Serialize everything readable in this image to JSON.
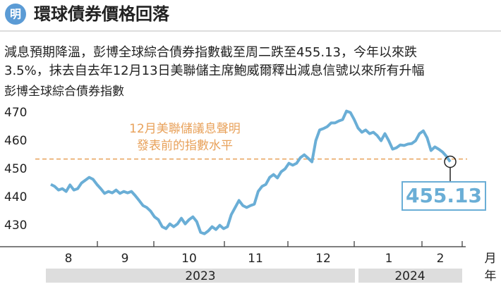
{
  "chart_data": {
    "type": "line",
    "logo": "明",
    "title": "環球債券價格回落",
    "subtitle": [
      "減息預期降溫，彭博全球綜合債券指數截至周二跌至455.13，今年以來跌",
      "3.5%，抹去自去年12月13日美聯儲主席鮑威爾釋出減息信號以來所有升幅"
    ],
    "y_label": "彭博全球綜合債券指數",
    "color": "#6aaed6",
    "values": [
      447.1,
      446.4,
      445.1,
      445.6,
      444.6,
      446.9,
      445.1,
      445.6,
      447.6,
      448.6,
      449.6,
      448.9,
      447.1,
      445.6,
      443.9,
      444.6,
      444.1,
      445.1,
      443.9,
      444.6,
      444.1,
      444.6,
      443.1,
      441.4,
      439.6,
      438.9,
      437.6,
      435.6,
      434.6,
      432.1,
      431.4,
      433.1,
      432.1,
      433.1,
      435.1,
      433.1,
      434.6,
      435.6,
      433.9,
      430.1,
      429.6,
      430.6,
      432.1,
      431.1,
      432.6,
      431.4,
      432.1,
      436.4,
      438.9,
      441.4,
      439.6,
      438.9,
      439.6,
      440.1,
      444.6,
      446.4,
      447.1,
      449.6,
      450.6,
      449.4,
      451.6,
      452.6,
      454.6,
      453.9,
      454.6,
      456.6,
      457.6,
      456.4,
      455.1,
      462.6,
      466.4,
      466.9,
      467.6,
      468.9,
      468.9,
      469.6,
      470.1,
      473.1,
      472.6,
      470.1,
      467.1,
      465.6,
      466.4,
      465.1,
      465.6,
      464.4,
      462.6,
      465.1,
      462.6,
      459.6,
      460.1,
      461.1,
      460.9,
      461.4,
      461.6,
      462.6,
      465.1,
      466.1,
      463.6,
      459.1,
      460.4,
      459.6,
      458.6,
      457.1,
      455.13
    ],
    "ylim": [
      425,
      475
    ],
    "yticks": [
      430,
      440,
      450,
      460,
      470
    ],
    "reference_value": 456.1,
    "reference_color": "#e8a15a",
    "annotation": [
      "12月美聯儲議息聲明",
      "發表前的指數水平"
    ],
    "months": [
      "8",
      "9",
      "10",
      "11",
      "12",
      "1",
      "2"
    ],
    "month_unit": "月",
    "years": [
      "2023",
      "2024"
    ],
    "year_unit": "年"
  }
}
